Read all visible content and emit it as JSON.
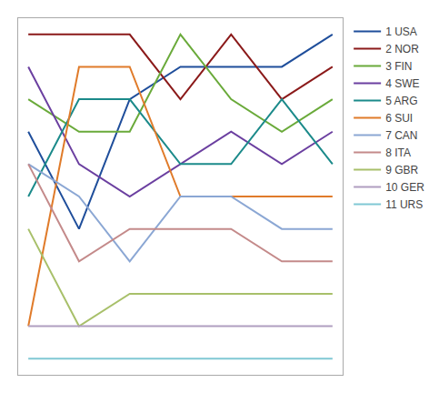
{
  "chart_data": {
    "type": "line",
    "x": [
      1,
      2,
      3,
      4,
      5,
      6,
      7
    ],
    "series": [
      {
        "name": "1 USA",
        "color": "#1F4E9B",
        "values": [
          4,
          7,
          3,
          2,
          2,
          2,
          1
        ]
      },
      {
        "name": "2 NOR",
        "color": "#8B1A1A",
        "values": [
          1,
          1,
          1,
          3,
          1,
          3,
          2
        ]
      },
      {
        "name": "3 FIN",
        "color": "#6AAA3A",
        "values": [
          3,
          4,
          4,
          1,
          3,
          4,
          3
        ]
      },
      {
        "name": "4 SWE",
        "color": "#6B3FA0",
        "values": [
          2,
          5,
          6,
          5,
          4,
          5,
          4
        ]
      },
      {
        "name": "5 ARG",
        "color": "#1B8A8A",
        "values": [
          6,
          3,
          3,
          5,
          5,
          3,
          5
        ]
      },
      {
        "name": "6 SUI",
        "color": "#E07B2A",
        "values": [
          10,
          2,
          2,
          6,
          6,
          6,
          6
        ]
      },
      {
        "name": "7 CAN",
        "color": "#8BA7D4",
        "values": [
          5,
          6,
          8,
          6,
          6,
          7,
          7
        ]
      },
      {
        "name": "8 ITA",
        "color": "#C48A8A",
        "values": [
          5,
          8,
          7,
          7,
          7,
          8,
          8
        ]
      },
      {
        "name": "9 GBR",
        "color": "#A8C06A",
        "values": [
          7,
          10,
          9,
          9,
          9,
          9,
          9
        ]
      },
      {
        "name": "10 GER",
        "color": "#B09EC0",
        "values": [
          10,
          10,
          10,
          10,
          10,
          10,
          10
        ]
      },
      {
        "name": "11 URS",
        "color": "#80C8D4",
        "values": [
          11,
          11,
          11,
          11,
          11,
          11,
          11
        ]
      }
    ],
    "xlim": [
      0.8,
      7.2
    ],
    "ylim": [
      11.5,
      0.5
    ],
    "xticks": [],
    "yticks": [],
    "tick_labels": false,
    "grid": false,
    "legend": "right"
  }
}
